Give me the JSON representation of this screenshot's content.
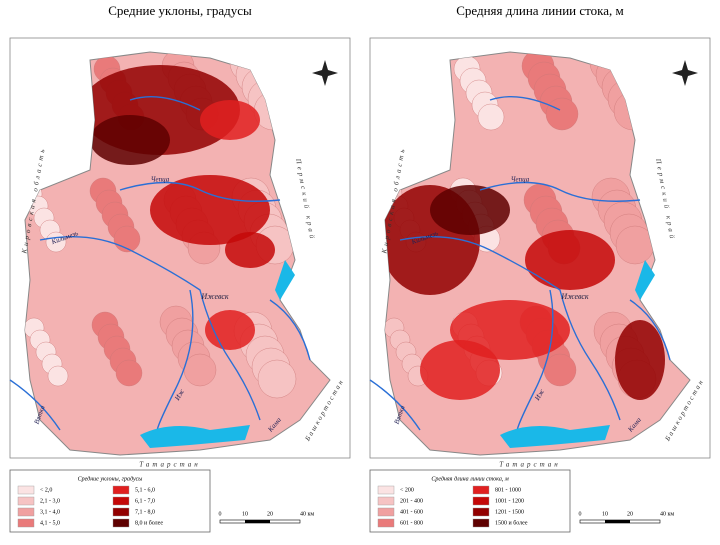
{
  "panels": [
    {
      "title": "Средние уклоны, градусы",
      "legend": {
        "title": "Средние уклоны, градусы",
        "items": [
          "< 2,0",
          "2,1 - 3,0",
          "3,1 - 4,0",
          "4,1 - 5,0",
          "5,1 - 6,0",
          "6,1 - 7,0",
          "7,1 - 8,0",
          "8,0 и более"
        ]
      }
    },
    {
      "title": "Средняя длина линии стока, м",
      "legend": {
        "title": "Средняя длина линии стока, м",
        "items": [
          "< 200",
          "201 - 400",
          "401 - 600",
          "601 - 800",
          "801 - 1000",
          "1001 - 1200",
          "1201 - 1500",
          "1500 и более"
        ]
      }
    }
  ],
  "map_labels": {
    "kirov": "Кировская область",
    "perm": "Пермский край",
    "tatarstan": "Татарстан",
    "bashkortostan": "Башкортостан",
    "izhevsk": "Ижевск",
    "kama": "Кама",
    "vyatka": "Вятка",
    "izh": "Иж",
    "cheptsa": "Чепца",
    "kilmez": "Кильмезь"
  },
  "scale": [
    "0",
    "10",
    "20",
    "40 км"
  ]
}
